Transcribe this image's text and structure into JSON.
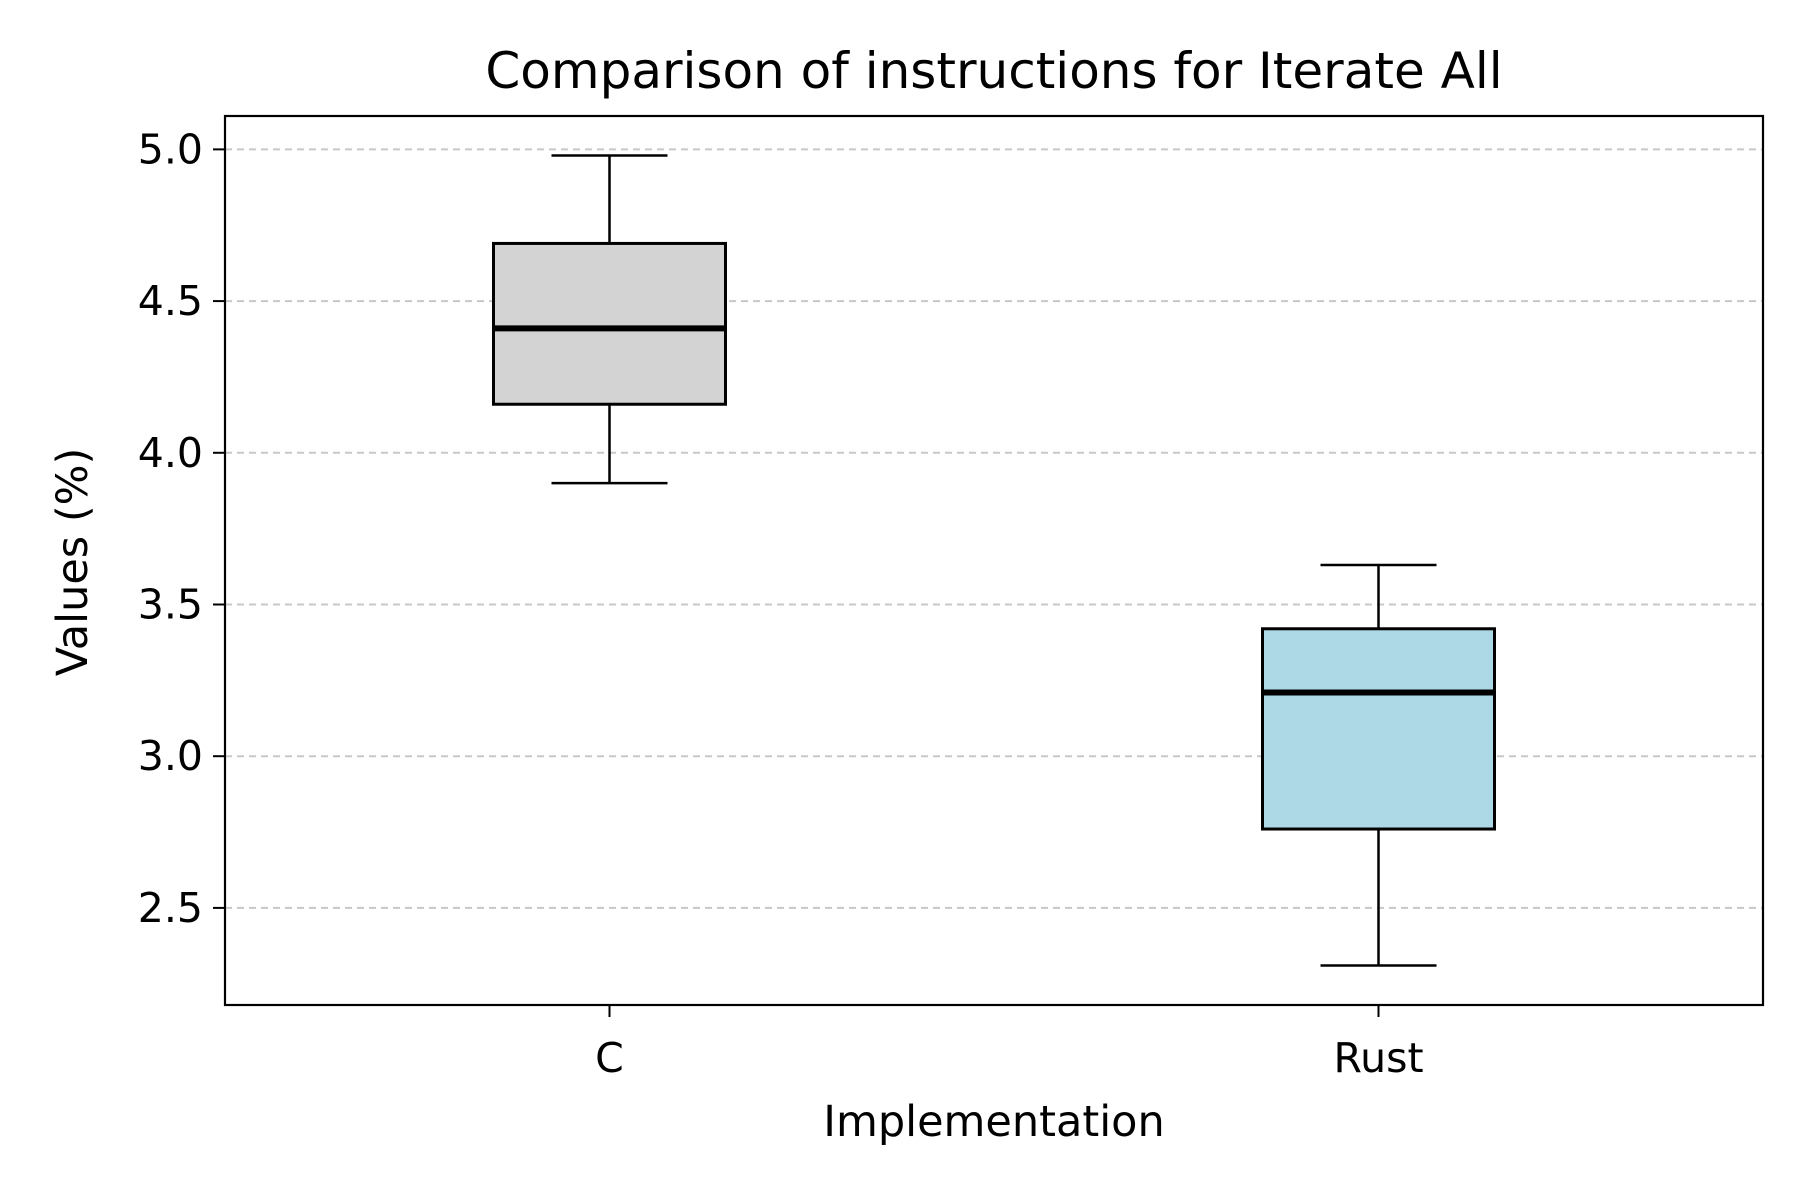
{
  "chart_data": {
    "type": "box",
    "title": "Comparison of instructions for Iterate All",
    "xlabel": "Implementation",
    "ylabel": "Values (%)",
    "categories": [
      "C",
      "Rust"
    ],
    "boxes": [
      {
        "label": "C",
        "whisker_low": 3.9,
        "q1": 4.16,
        "median": 4.41,
        "q3": 4.69,
        "whisker_high": 4.98,
        "color": "#d3d3d3"
      },
      {
        "label": "Rust",
        "whisker_low": 2.31,
        "q1": 2.76,
        "median": 3.21,
        "q3": 3.42,
        "whisker_high": 3.63,
        "color": "#add8e6"
      }
    ],
    "ylim": [
      2.18,
      5.11
    ],
    "yticks": [
      2.5,
      3.0,
      3.5,
      4.0,
      4.5,
      5.0
    ],
    "ytick_labels": [
      "2.5",
      "3.0",
      "3.5",
      "4.0",
      "4.5",
      "5.0"
    ],
    "grid": {
      "axis": "y",
      "style": "dashed"
    },
    "legend": "none"
  }
}
